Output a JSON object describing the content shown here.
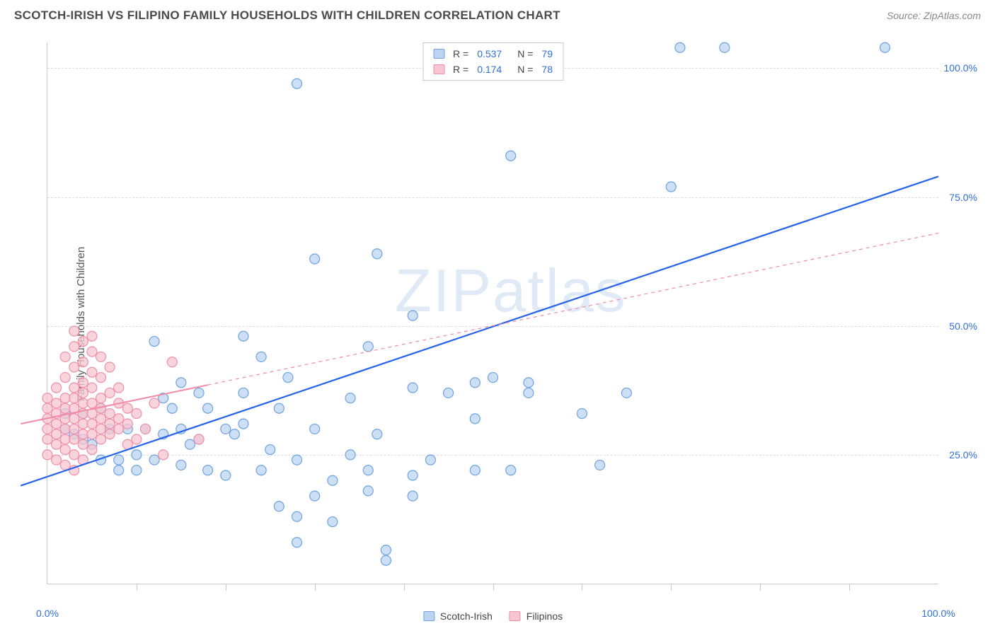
{
  "header": {
    "title": "SCOTCH-IRISH VS FILIPINO FAMILY HOUSEHOLDS WITH CHILDREN CORRELATION CHART",
    "source": "Source: ZipAtlas.com"
  },
  "chart": {
    "type": "scatter",
    "ylabel": "Family Households with Children",
    "watermark_a": "ZIP",
    "watermark_b": "atlas",
    "xlim": [
      0,
      100
    ],
    "ylim": [
      0,
      105
    ],
    "xtick_labels": [
      {
        "pos": 0,
        "label": "0.0%"
      },
      {
        "pos": 100,
        "label": "100.0%"
      }
    ],
    "xtick_positions": [
      10,
      20,
      30,
      40,
      50,
      60,
      70,
      80,
      90
    ],
    "ytick_labels": [
      {
        "pos": 25,
        "label": "25.0%"
      },
      {
        "pos": 50,
        "label": "50.0%"
      },
      {
        "pos": 75,
        "label": "75.0%"
      },
      {
        "pos": 100,
        "label": "100.0%"
      }
    ],
    "grid_color": "#dcdcdc",
    "background_color": "#ffffff",
    "series": [
      {
        "name": "Scotch-Irish",
        "marker_fill": "#bcd4f0",
        "marker_stroke": "#6ea3e0",
        "marker_radius": 7,
        "line_color": "#2563eb",
        "line_width": 2.2,
        "line_dash": "none",
        "line_start": [
          -3,
          19
        ],
        "line_end": [
          100,
          79
        ],
        "r_value": "0.537",
        "n_value": "79",
        "points": [
          [
            71,
            104
          ],
          [
            76,
            104
          ],
          [
            94,
            104
          ],
          [
            28,
            97
          ],
          [
            52,
            83
          ],
          [
            70,
            77
          ],
          [
            37,
            64
          ],
          [
            30,
            63
          ],
          [
            36,
            46
          ],
          [
            12,
            47
          ],
          [
            41,
            52
          ],
          [
            54,
            39
          ],
          [
            54,
            37
          ],
          [
            22,
            48
          ],
          [
            15,
            39
          ],
          [
            17,
            37
          ],
          [
            27,
            40
          ],
          [
            48,
            39
          ],
          [
            65,
            37
          ],
          [
            48,
            32
          ],
          [
            60,
            33
          ],
          [
            52,
            22
          ],
          [
            62,
            23
          ],
          [
            41,
            21
          ],
          [
            41,
            17
          ],
          [
            36,
            22
          ],
          [
            36,
            18
          ],
          [
            38,
            6.5
          ],
          [
            38,
            4.5
          ],
          [
            32,
            12
          ],
          [
            28,
            13
          ],
          [
            30,
            17
          ],
          [
            24,
            22
          ],
          [
            20,
            21
          ],
          [
            18,
            22
          ],
          [
            15,
            23
          ],
          [
            12,
            24
          ],
          [
            10,
            25
          ],
          [
            8,
            24
          ],
          [
            6,
            24
          ],
          [
            4,
            28
          ],
          [
            3,
            29
          ],
          [
            2,
            30
          ],
          [
            7,
            30
          ],
          [
            9,
            30
          ],
          [
            11,
            30
          ],
          [
            13,
            29
          ],
          [
            15,
            30
          ],
          [
            17,
            28
          ],
          [
            20,
            30
          ],
          [
            22,
            31
          ],
          [
            18,
            34
          ],
          [
            14,
            34
          ],
          [
            13,
            36
          ],
          [
            6,
            34
          ],
          [
            4,
            33
          ],
          [
            2,
            33
          ],
          [
            5,
            27
          ],
          [
            8,
            22
          ],
          [
            10,
            22
          ],
          [
            26,
            15
          ],
          [
            28,
            8
          ],
          [
            21,
            29
          ],
          [
            25,
            26
          ],
          [
            26,
            34
          ],
          [
            22,
            37
          ],
          [
            34,
            36
          ],
          [
            30,
            30
          ],
          [
            48,
            22
          ],
          [
            45,
            37
          ],
          [
            41,
            38
          ],
          [
            37,
            29
          ],
          [
            50,
            40
          ],
          [
            43,
            24
          ],
          [
            32,
            20
          ],
          [
            34,
            25
          ],
          [
            28,
            24
          ],
          [
            16,
            27
          ],
          [
            24,
            44
          ]
        ]
      },
      {
        "name": "Filipinos",
        "marker_fill": "#f7c6d2",
        "marker_stroke": "#ef8fa9",
        "marker_radius": 7,
        "line_color": "#f28aa5",
        "line_width": 2.0,
        "line_solid_end": 18,
        "line_dash": "5,5",
        "line_start": [
          -3,
          31
        ],
        "line_end": [
          100,
          68
        ],
        "r_value": "0.174",
        "n_value": "78",
        "points": [
          [
            0,
            25
          ],
          [
            0,
            28
          ],
          [
            0,
            30
          ],
          [
            0,
            32
          ],
          [
            0,
            34
          ],
          [
            0,
            36
          ],
          [
            1,
            24
          ],
          [
            1,
            27
          ],
          [
            1,
            29
          ],
          [
            1,
            31
          ],
          [
            1,
            33
          ],
          [
            1,
            35
          ],
          [
            1,
            38
          ],
          [
            2,
            23
          ],
          [
            2,
            26
          ],
          [
            2,
            28
          ],
          [
            2,
            30
          ],
          [
            2,
            32
          ],
          [
            2,
            34
          ],
          [
            2,
            36
          ],
          [
            2,
            40
          ],
          [
            2,
            44
          ],
          [
            3,
            22
          ],
          [
            3,
            25
          ],
          [
            3,
            28
          ],
          [
            3,
            30
          ],
          [
            3,
            32
          ],
          [
            3,
            34
          ],
          [
            3,
            36
          ],
          [
            3,
            38
          ],
          [
            3,
            42
          ],
          [
            3,
            46
          ],
          [
            3,
            49
          ],
          [
            4,
            24
          ],
          [
            4,
            27
          ],
          [
            4,
            29
          ],
          [
            4,
            31
          ],
          [
            4,
            33
          ],
          [
            4,
            35
          ],
          [
            4,
            37
          ],
          [
            4,
            39
          ],
          [
            4,
            43
          ],
          [
            4,
            47
          ],
          [
            5,
            26
          ],
          [
            5,
            29
          ],
          [
            5,
            31
          ],
          [
            5,
            33
          ],
          [
            5,
            35
          ],
          [
            5,
            38
          ],
          [
            5,
            41
          ],
          [
            5,
            45
          ],
          [
            5,
            48
          ],
          [
            6,
            28
          ],
          [
            6,
            30
          ],
          [
            6,
            32
          ],
          [
            6,
            34
          ],
          [
            6,
            36
          ],
          [
            6,
            40
          ],
          [
            6,
            44
          ],
          [
            7,
            29
          ],
          [
            7,
            31
          ],
          [
            7,
            33
          ],
          [
            7,
            37
          ],
          [
            7,
            42
          ],
          [
            8,
            30
          ],
          [
            8,
            32
          ],
          [
            8,
            35
          ],
          [
            8,
            38
          ],
          [
            9,
            31
          ],
          [
            9,
            34
          ],
          [
            9,
            27
          ],
          [
            10,
            33
          ],
          [
            10,
            28
          ],
          [
            11,
            30
          ],
          [
            12,
            35
          ],
          [
            13,
            25
          ],
          [
            14,
            43
          ],
          [
            17,
            28
          ]
        ]
      }
    ],
    "legend_top": [
      {
        "swatch_fill": "#bcd4f0",
        "swatch_stroke": "#6ea3e0",
        "r_label": "R =",
        "r": "0.537",
        "n_label": "N =",
        "n": "79"
      },
      {
        "swatch_fill": "#f7c6d2",
        "swatch_stroke": "#ef8fa9",
        "r_label": "R =",
        "r": "0.174",
        "n_label": "N =",
        "n": "78"
      }
    ],
    "legend_bottom": [
      {
        "swatch_fill": "#bcd4f0",
        "swatch_stroke": "#6ea3e0",
        "label": "Scotch-Irish"
      },
      {
        "swatch_fill": "#f7c6d2",
        "swatch_stroke": "#ef8fa9",
        "label": "Filipinos"
      }
    ]
  }
}
